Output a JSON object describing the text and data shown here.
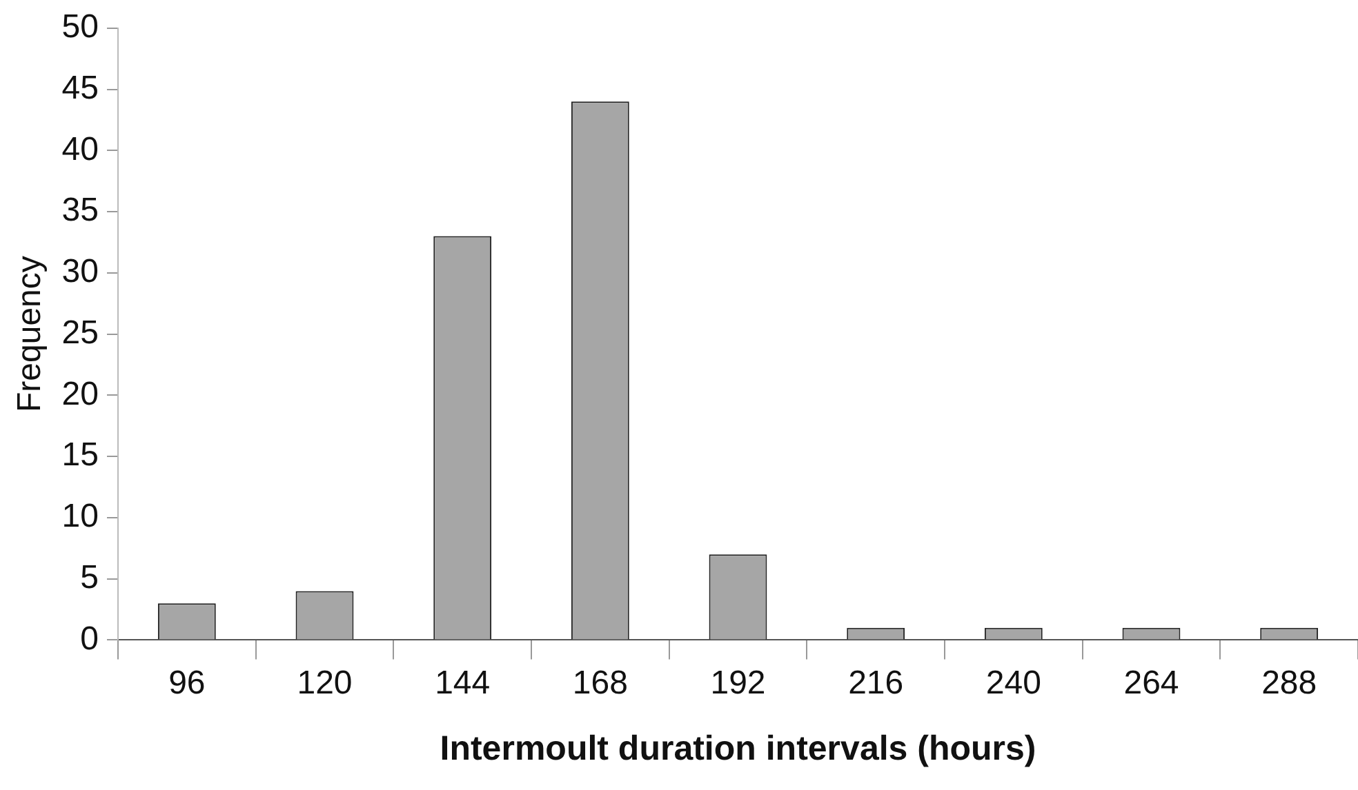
{
  "chart_data": {
    "type": "bar",
    "xlabel": "Intermoult duration intervals (hours)",
    "ylabel": "Frequency",
    "categories": [
      "96",
      "120",
      "144",
      "168",
      "192",
      "216",
      "240",
      "264",
      "288"
    ],
    "values": [
      3,
      4,
      33,
      44,
      7,
      1,
      1,
      1,
      1
    ],
    "color": "#a6a6a6",
    "ylim": [
      0,
      50
    ],
    "yticks": [
      0,
      5,
      10,
      15,
      20,
      25,
      30,
      35,
      40,
      45,
      50
    ],
    "grid": false,
    "legend": false
  }
}
